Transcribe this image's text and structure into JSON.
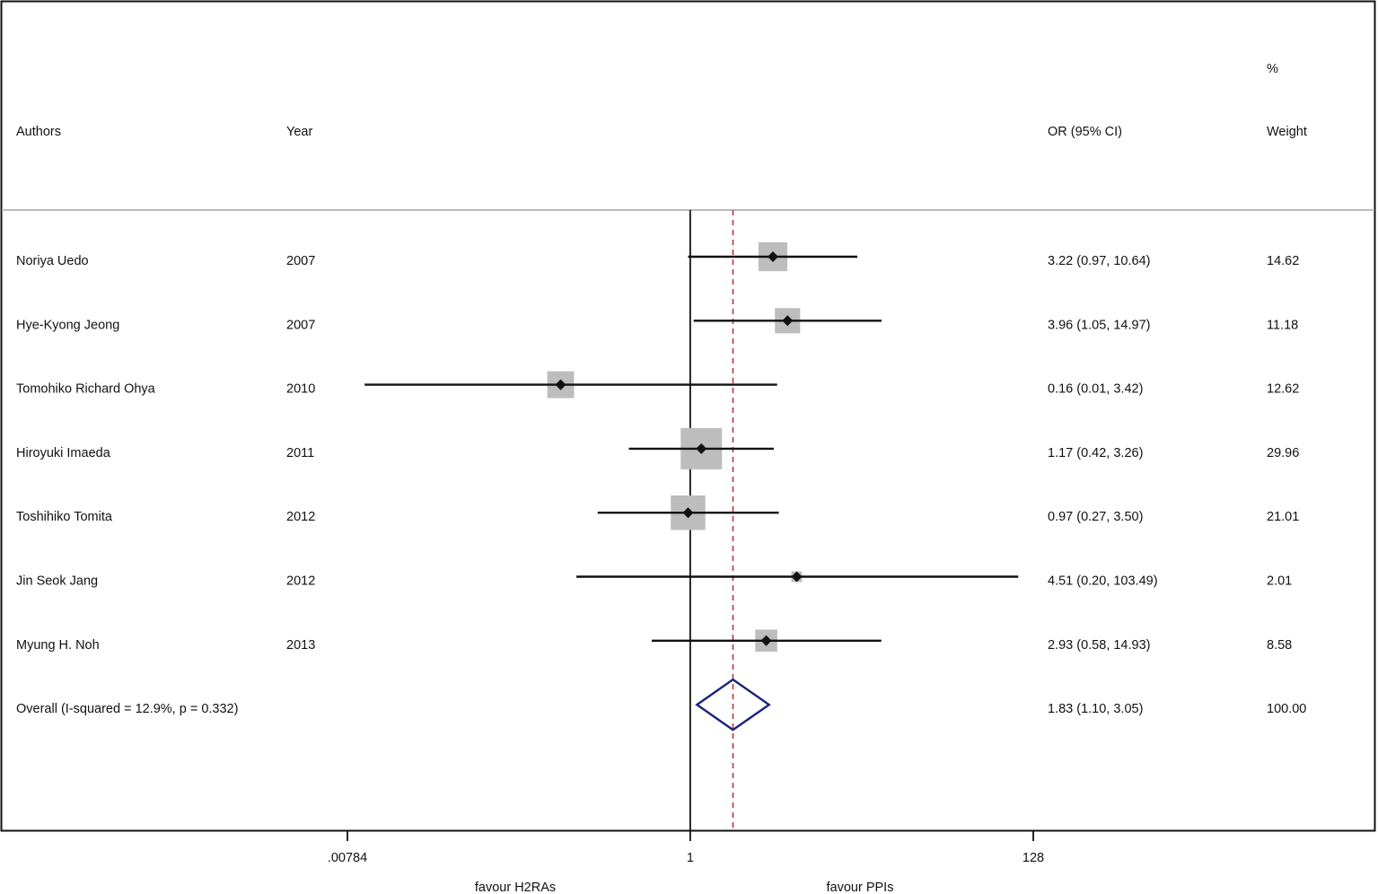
{
  "header": {
    "authors_label": "Authors",
    "year_label": "Year",
    "ci_label": "OR (95% CI)",
    "weight_pct_label": "%",
    "weight_label": "Weight"
  },
  "chart_data": {
    "type": "forest",
    "scale": "log2",
    "xlim": [
      0.00784,
      128
    ],
    "xticks": [
      ".00784",
      "1",
      "128"
    ],
    "xtick_values": [
      0.00784,
      1,
      128
    ],
    "null_line": 1,
    "overall_line": 1.83,
    "xlabel_left": "favour H2RAs",
    "xlabel_right": "favour PPIs",
    "studies": [
      {
        "author": "Noriya Uedo",
        "year": "2007",
        "or": 3.22,
        "lo": 0.97,
        "hi": 10.64,
        "ci_text": "3.22 (0.97, 10.64)",
        "weight": 14.62,
        "weight_text": "14.62"
      },
      {
        "author": "Hye-Kyong Jeong",
        "year": "2007",
        "or": 3.96,
        "lo": 1.05,
        "hi": 14.97,
        "ci_text": "3.96 (1.05, 14.97)",
        "weight": 11.18,
        "weight_text": "11.18"
      },
      {
        "author": "Tomohiko Richard Ohya",
        "year": "2010",
        "or": 0.16,
        "lo": 0.01,
        "hi": 3.42,
        "ci_text": "0.16 (0.01, 3.42)",
        "weight": 12.62,
        "weight_text": "12.62"
      },
      {
        "author": "Hiroyuki Imaeda",
        "year": "2011",
        "or": 1.17,
        "lo": 0.42,
        "hi": 3.26,
        "ci_text": "1.17 (0.42, 3.26)",
        "weight": 29.96,
        "weight_text": "29.96"
      },
      {
        "author": "Toshihiko Tomita",
        "year": "2012",
        "or": 0.97,
        "lo": 0.27,
        "hi": 3.5,
        "ci_text": "0.97 (0.27, 3.50)",
        "weight": 21.01,
        "weight_text": "21.01"
      },
      {
        "author": "Jin Seok Jang",
        "year": "2012",
        "or": 4.51,
        "lo": 0.2,
        "hi": 103.49,
        "ci_text": "4.51 (0.20, 103.49)",
        "weight": 2.01,
        "weight_text": "2.01"
      },
      {
        "author": "Myung H. Noh",
        "year": "2013",
        "or": 2.93,
        "lo": 0.58,
        "hi": 14.93,
        "ci_text": "2.93 (0.58, 14.93)",
        "weight": 8.58,
        "weight_text": "8.58"
      }
    ],
    "overall": {
      "label": "Overall  (I-squared = 12.9%, p = 0.332)",
      "or": 1.83,
      "lo": 1.1,
      "hi": 3.05,
      "ci_text": "1.83 (1.10, 3.05)",
      "weight_text": "100.00"
    },
    "colors": {
      "box": "#bdbdbd",
      "diamond": "#1a237e",
      "dashed_line": "#b03a3a"
    }
  }
}
